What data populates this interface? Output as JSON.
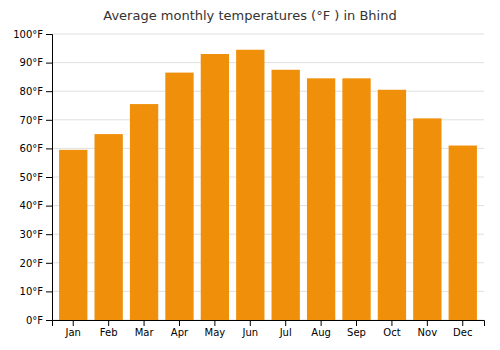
{
  "chart_data": {
    "type": "bar",
    "title": "Average monthly temperatures (°F ) in Bhind",
    "categories": [
      "Jan",
      "Feb",
      "Mar",
      "Apr",
      "May",
      "Jun",
      "Jul",
      "Aug",
      "Sep",
      "Oct",
      "Nov",
      "Dec"
    ],
    "values": [
      59.5,
      65,
      75.5,
      86.5,
      93,
      94.5,
      87.5,
      84.5,
      84.5,
      80.5,
      70.5,
      61
    ],
    "color": "#F0900A",
    "ylim": [
      0,
      100
    ],
    "yticks": [
      {
        "value": 0,
        "label": "0°F"
      },
      {
        "value": 10,
        "label": "10°F"
      },
      {
        "value": 20,
        "label": "20°F"
      },
      {
        "value": 30,
        "label": "30°F"
      },
      {
        "value": 40,
        "label": "40°F"
      },
      {
        "value": 50,
        "label": "50°F"
      },
      {
        "value": 60,
        "label": "60°F"
      },
      {
        "value": 70,
        "label": "70°F"
      },
      {
        "value": 80,
        "label": "80°F"
      },
      {
        "value": 90,
        "label": "90°F"
      },
      {
        "value": 100,
        "label": "100°F"
      }
    ],
    "grid": true
  }
}
